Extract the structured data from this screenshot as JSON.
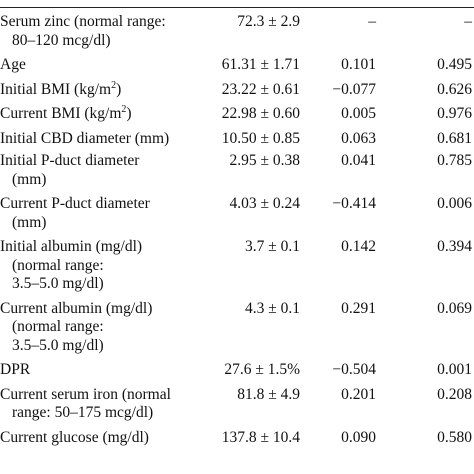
{
  "table": {
    "rows": [
      {
        "lines": [
          "Serum zinc (normal range:",
          "80–120 mcg/dl)"
        ],
        "mean": "72.3 ± 2.9",
        "r": "–",
        "p": "–"
      },
      {
        "lines": [
          "Age"
        ],
        "mean": "61.31 ± 1.71",
        "r": "0.101",
        "p": "0.495"
      },
      {
        "lines": [
          "Initial BMI (kg/m",
          "2",
          ")"
        ],
        "mean": "23.22 ± 0.61",
        "r": "−0.077",
        "p": "0.626"
      },
      {
        "lines": [
          "Current BMI (kg/m",
          "2",
          ")"
        ],
        "mean": "22.98 ± 0.60",
        "r": "0.005",
        "p": "0.976"
      },
      {
        "lines": [
          "Initial CBD diameter (mm)"
        ],
        "mean": "10.50 ± 0.85",
        "r": "0.063",
        "p": "0.681"
      },
      {
        "lines": [
          "Initial P-duct diameter",
          "(mm)"
        ],
        "mean": "2.95 ± 0.38",
        "r": "0.041",
        "p": "0.785"
      },
      {
        "lines": [
          "Current P-duct diameter",
          "(mm)"
        ],
        "mean": "4.03 ± 0.24",
        "r": "−0.414",
        "p": "0.006"
      },
      {
        "lines": [
          "Initial albumin (mg/dl)",
          "(normal range:",
          "3.5–5.0 mg/dl)"
        ],
        "mean": "3.7 ± 0.1",
        "r": "0.142",
        "p": "0.394"
      },
      {
        "lines": [
          "Current albumin (mg/dl)",
          "(normal range:",
          "3.5–5.0 mg/dl)"
        ],
        "mean": "4.3 ± 0.1",
        "r": "0.291",
        "p": "0.069"
      },
      {
        "lines": [
          "DPR"
        ],
        "mean": "27.6 ± 1.5%",
        "r": "−0.504",
        "p": "0.001"
      },
      {
        "lines": [
          "Current serum iron (normal",
          "range: 50–175 mcg/dl)"
        ],
        "mean": "81.8 ± 4.9",
        "r": "0.201",
        "p": "0.208"
      },
      {
        "lines": [
          "Current glucose (mg/dl)"
        ],
        "mean": "137.8 ± 10.4",
        "r": "0.090",
        "p": "0.580"
      }
    ]
  }
}
